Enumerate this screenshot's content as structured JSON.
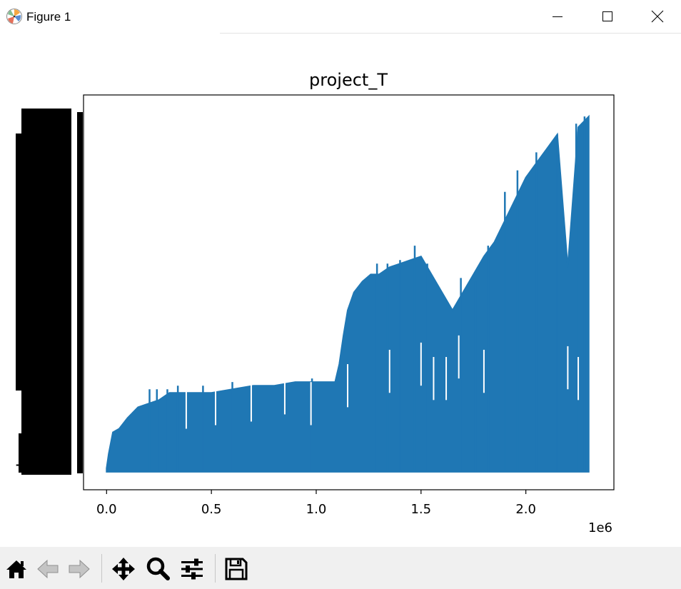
{
  "window": {
    "title": "Figure 1",
    "controls": [
      "minimize-icon",
      "maximize-icon",
      "close-icon"
    ]
  },
  "chart_data": {
    "type": "line",
    "title": "project_T",
    "xlabel": "",
    "ylabel": "",
    "x_offset_label": "1e6",
    "xlim": [
      -110000,
      2420000
    ],
    "ylim": [
      -0.05,
      1.05
    ],
    "x_ticks": [
      0.0,
      500000,
      1000000,
      1500000,
      2000000
    ],
    "x_tick_labels": [
      "0.0",
      "0.5",
      "1.0",
      "1.5",
      "2.0"
    ],
    "y_tick_labels_note": "y tick labels are overprinted and illegible",
    "grid": false,
    "line_color": "#1f77b4",
    "series": [
      {
        "x": [
          0,
          10000,
          30000,
          60000,
          100000,
          150000,
          200000,
          250000,
          300000,
          400000,
          500000,
          600000,
          700000,
          800000,
          900000,
          1000000,
          1050000,
          1090000,
          1110000,
          1130000,
          1150000,
          1180000,
          1220000,
          1260000,
          1300000,
          1350000,
          1400000,
          1450000,
          1500000,
          1550000,
          1600000,
          1650000,
          1700000,
          1750000,
          1800000,
          1850000,
          1900000,
          1950000,
          2000000,
          2050000,
          2100000,
          2150000,
          2200000,
          2250000,
          2300000
        ],
        "upper": [
          0.01,
          0.05,
          0.11,
          0.12,
          0.15,
          0.18,
          0.19,
          0.2,
          0.22,
          0.22,
          0.22,
          0.23,
          0.24,
          0.24,
          0.25,
          0.25,
          0.25,
          0.25,
          0.3,
          0.38,
          0.45,
          0.5,
          0.53,
          0.55,
          0.55,
          0.57,
          0.58,
          0.59,
          0.6,
          0.55,
          0.5,
          0.45,
          0.5,
          0.55,
          0.6,
          0.64,
          0.7,
          0.76,
          0.82,
          0.86,
          0.9,
          0.94,
          0.57,
          0.96,
          0.99
        ],
        "lower": [
          0.0,
          0.0,
          0.0,
          0.0,
          0.0,
          0.0,
          0.0,
          0.0,
          0.0,
          0.0,
          0.0,
          0.0,
          0.0,
          0.0,
          0.0,
          0.0,
          0.0,
          0.0,
          0.0,
          0.0,
          0.0,
          0.0,
          0.0,
          0.0,
          0.0,
          0.0,
          0.0,
          0.0,
          0.0,
          0.0,
          0.0,
          0.0,
          0.0,
          0.0,
          0.0,
          0.0,
          0.0,
          0.0,
          0.0,
          0.0,
          0.0,
          0.0,
          0.0,
          0.0,
          0.0
        ]
      }
    ],
    "spikes": [
      {
        "x": 205000,
        "y": 0.23
      },
      {
        "x": 240000,
        "y": 0.23
      },
      {
        "x": 290000,
        "y": 0.23
      },
      {
        "x": 340000,
        "y": 0.24
      },
      {
        "x": 460000,
        "y": 0.24
      },
      {
        "x": 600000,
        "y": 0.25
      },
      {
        "x": 980000,
        "y": 0.26
      },
      {
        "x": 1290000,
        "y": 0.58
      },
      {
        "x": 1340000,
        "y": 0.58
      },
      {
        "x": 1400000,
        "y": 0.59
      },
      {
        "x": 1470000,
        "y": 0.63
      },
      {
        "x": 1530000,
        "y": 0.58
      },
      {
        "x": 1610000,
        "y": 0.49
      },
      {
        "x": 1690000,
        "y": 0.54
      },
      {
        "x": 1760000,
        "y": 0.53
      },
      {
        "x": 1820000,
        "y": 0.63
      },
      {
        "x": 1900000,
        "y": 0.78
      },
      {
        "x": 1960000,
        "y": 0.84
      },
      {
        "x": 2050000,
        "y": 0.89
      },
      {
        "x": 2150000,
        "y": 0.94
      },
      {
        "x": 2240000,
        "y": 0.97
      },
      {
        "x": 2280000,
        "y": 0.99
      }
    ],
    "dips": [
      {
        "x": 380000,
        "y": 0.12
      },
      {
        "x": 520000,
        "y": 0.13
      },
      {
        "x": 690000,
        "y": 0.14
      },
      {
        "x": 850000,
        "y": 0.16
      },
      {
        "x": 975000,
        "y": 0.13
      },
      {
        "x": 1150000,
        "y": 0.18
      },
      {
        "x": 1350000,
        "y": 0.22
      },
      {
        "x": 1500000,
        "y": 0.24
      },
      {
        "x": 1560000,
        "y": 0.2
      },
      {
        "x": 1620000,
        "y": 0.2
      },
      {
        "x": 1680000,
        "y": 0.26
      },
      {
        "x": 1800000,
        "y": 0.22
      },
      {
        "x": 2200000,
        "y": 0.23
      },
      {
        "x": 2250000,
        "y": 0.2
      }
    ]
  },
  "toolbar": {
    "buttons": [
      {
        "name": "home-button",
        "icon": "home-icon"
      },
      {
        "name": "back-button",
        "icon": "arrow-left-icon"
      },
      {
        "name": "forward-button",
        "icon": "arrow-right-icon"
      },
      {
        "name": "pan-button",
        "icon": "move-icon"
      },
      {
        "name": "zoom-button",
        "icon": "magnifier-icon"
      },
      {
        "name": "configure-subplots-button",
        "icon": "sliders-icon"
      },
      {
        "name": "save-button",
        "icon": "floppy-disk-icon"
      }
    ]
  }
}
